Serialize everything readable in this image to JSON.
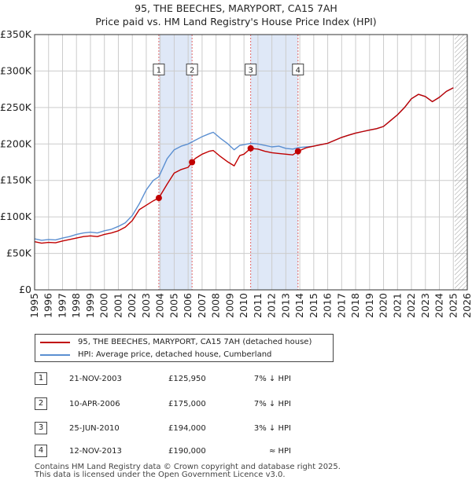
{
  "header": {
    "title_line1": "95, THE BEECHES, MARYPORT, CA15 7AH",
    "title_line2": "Price paid vs. HM Land Registry's House Price Index (HPI)"
  },
  "colors": {
    "property": "#c00000",
    "hpi": "#5b8fd1",
    "shade": "#dfe8f7",
    "vline": "#e06666",
    "grid": "#cccccc"
  },
  "chart_data": {
    "type": "line",
    "title": "95, THE BEECHES, MARYPORT, CA15 7AH — Price paid vs. HM Land Registry's House Price Index (HPI)",
    "xlim": [
      1995,
      2026
    ],
    "ylim": [
      0,
      350000
    ],
    "y_ticks": [
      0,
      50000,
      100000,
      150000,
      200000,
      250000,
      300000,
      350000
    ],
    "y_tick_labels": [
      "£0",
      "£50K",
      "£100K",
      "£150K",
      "£200K",
      "£250K",
      "£300K",
      "£350K"
    ],
    "x_ticks": [
      1995,
      1996,
      1997,
      1998,
      1999,
      2000,
      2001,
      2002,
      2003,
      2004,
      2005,
      2006,
      2007,
      2008,
      2009,
      2010,
      2011,
      2012,
      2013,
      2014,
      2015,
      2016,
      2017,
      2018,
      2019,
      2020,
      2021,
      2022,
      2023,
      2024,
      2025,
      2026
    ],
    "x_tick_labels": [
      "1995",
      "1996",
      "1997",
      "1998",
      "1999",
      "2000",
      "2001",
      "2002",
      "2003",
      "2004",
      "2005",
      "2006",
      "2007",
      "2008",
      "2009",
      "2010",
      "2011",
      "2012",
      "2013",
      "2014",
      "2015",
      "2016",
      "2017",
      "2018",
      "2019",
      "2020",
      "2021",
      "2022",
      "2023",
      "2024",
      "2025",
      "2026"
    ],
    "future_hatch_start": 2025.1,
    "shaded_periods": [
      [
        2003.9,
        2006.28
      ],
      [
        2010.48,
        2013.87
      ]
    ],
    "series": [
      {
        "name": "HPI: Average price, detached house, Cumberland",
        "color": "#5b8fd1",
        "x": [
          1995.0,
          1995.5,
          1996.0,
          1996.5,
          1997.0,
          1997.5,
          1998.0,
          1998.5,
          1999.0,
          1999.5,
          2000.0,
          2000.5,
          2001.0,
          2001.5,
          2002.0,
          2002.5,
          2003.0,
          2003.5,
          2003.9,
          2004.5,
          2005.0,
          2005.5,
          2006.0,
          2006.5,
          2007.0,
          2007.5,
          2007.8,
          2008.3,
          2008.8,
          2009.3,
          2009.7,
          2010.0,
          2010.5,
          2011.0,
          2011.5,
          2012.0,
          2012.5,
          2013.0,
          2013.5,
          2013.9,
          2014.5,
          2015.0,
          2015.5,
          2016.0,
          2016.5,
          2017.0,
          2017.5,
          2018.0,
          2018.5,
          2019.0,
          2019.5,
          2020.0,
          2020.5,
          2021.0,
          2021.5,
          2022.0,
          2022.5,
          2023.0,
          2023.5,
          2024.0,
          2024.5,
          2025.0
        ],
        "values": [
          70000,
          68000,
          69000,
          68500,
          71000,
          73000,
          76000,
          78000,
          79000,
          78000,
          81000,
          83000,
          87000,
          92000,
          102000,
          118000,
          137000,
          150000,
          155000,
          180000,
          192000,
          197000,
          200000,
          205000,
          210000,
          214000,
          216000,
          208000,
          201000,
          192000,
          198000,
          199000,
          201000,
          200000,
          198000,
          196000,
          197000,
          194000,
          193000,
          195000,
          196000,
          197000,
          199000,
          201000,
          205000,
          209000,
          212000,
          215000,
          217000,
          219000,
          221000,
          224000,
          232000,
          240000,
          250000,
          262000,
          268000,
          265000,
          258000,
          264000,
          272000,
          277000
        ]
      },
      {
        "name": "95, THE BEECHES, MARYPORT, CA15 7AH (detached house)",
        "color": "#c00000",
        "x": [
          1995.0,
          1995.5,
          1996.0,
          1996.5,
          1997.0,
          1997.5,
          1998.0,
          1998.5,
          1999.0,
          1999.5,
          2000.0,
          2000.5,
          2001.0,
          2001.5,
          2002.0,
          2002.5,
          2003.0,
          2003.5,
          2003.9,
          2004.5,
          2005.0,
          2005.5,
          2006.0,
          2006.28,
          2006.5,
          2007.0,
          2007.5,
          2007.8,
          2008.3,
          2008.8,
          2009.3,
          2009.7,
          2010.0,
          2010.48,
          2011.0,
          2011.5,
          2012.0,
          2012.5,
          2013.0,
          2013.5,
          2013.87,
          2014.5,
          2015.0,
          2015.5,
          2016.0,
          2016.5,
          2017.0,
          2017.5,
          2018.0,
          2018.5,
          2019.0,
          2019.5,
          2020.0,
          2020.5,
          2021.0,
          2021.5,
          2022.0,
          2022.5,
          2023.0,
          2023.5,
          2024.0,
          2024.5,
          2025.0
        ],
        "values": [
          66000,
          64000,
          65000,
          64500,
          67000,
          69000,
          71000,
          73000,
          74000,
          73000,
          76000,
          78000,
          81000,
          86000,
          95000,
          110000,
          116000,
          122000,
          125950,
          145000,
          160000,
          165000,
          168000,
          175000,
          180000,
          186000,
          190000,
          191000,
          183000,
          176000,
          170000,
          184000,
          186000,
          194000,
          193000,
          190000,
          188000,
          187000,
          186000,
          185000,
          190000,
          195000,
          197000,
          199000,
          201000,
          205000,
          209000,
          212000,
          215000,
          217000,
          219000,
          221000,
          224000,
          232000,
          240000,
          250000,
          262000,
          268000,
          265000,
          258000,
          264000,
          272000,
          277000
        ]
      }
    ],
    "sale_points": [
      {
        "label": "1",
        "x": 2003.9,
        "value": 125950
      },
      {
        "label": "2",
        "x": 2006.28,
        "value": 175000
      },
      {
        "label": "3",
        "x": 2010.48,
        "value": 194000
      },
      {
        "label": "4",
        "x": 2013.87,
        "value": 190000
      }
    ]
  },
  "legend": {
    "property_label": "95, THE BEECHES, MARYPORT, CA15 7AH (detached house)",
    "hpi_label": "HPI: Average price, detached house, Cumberland"
  },
  "transactions": [
    {
      "num": "1",
      "date": "21-NOV-2003",
      "price": "£125,950",
      "hpi": "7% ↓ HPI"
    },
    {
      "num": "2",
      "date": "10-APR-2006",
      "price": "£175,000",
      "hpi": "7% ↓ HPI"
    },
    {
      "num": "3",
      "date": "25-JUN-2010",
      "price": "£194,000",
      "hpi": "3% ↓ HPI"
    },
    {
      "num": "4",
      "date": "12-NOV-2013",
      "price": "£190,000",
      "hpi": "≈ HPI"
    }
  ],
  "footer": {
    "line1": "Contains HM Land Registry data © Crown copyright and database right 2025.",
    "line2": "This data is licensed under the Open Government Licence v3.0."
  }
}
